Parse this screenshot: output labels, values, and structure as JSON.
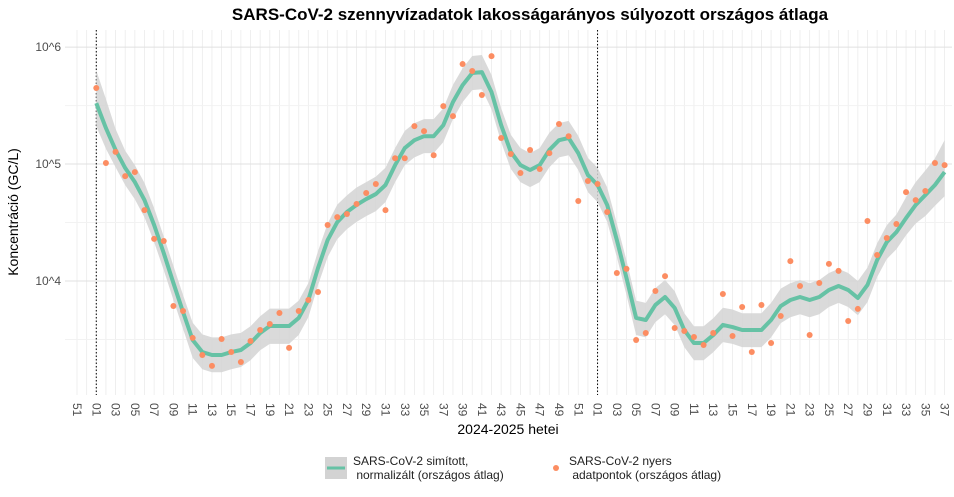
{
  "chart_data": {
    "type": "line",
    "title": "SARS-CoV-2 szennyvízadatok lakosságarányos súlyozott országos átlaga",
    "x_label": "2024-2025 hetei",
    "y_label": "Koncentráció (GC/L)",
    "log_y": true,
    "grid": true,
    "legend_position": "bottom",
    "categories": [
      "51",
      null,
      "01",
      null,
      "03",
      null,
      "05",
      null,
      "07",
      null,
      "09",
      null,
      "11",
      null,
      "13",
      null,
      "15",
      null,
      "17",
      null,
      "19",
      null,
      "21",
      null,
      "23",
      null,
      "25",
      null,
      "27",
      null,
      "29",
      null,
      "31",
      null,
      "33",
      null,
      "35",
      null,
      "37",
      null,
      "39",
      null,
      "41",
      null,
      "43",
      null,
      "45",
      null,
      "47",
      null,
      "49",
      null,
      "51",
      null,
      "01",
      null,
      "03",
      null,
      "05",
      null,
      "07",
      null,
      "09",
      null,
      "11",
      null,
      "13",
      null,
      "15",
      null,
      "17",
      null,
      "19",
      null,
      "21",
      null,
      "23",
      null,
      "25",
      null,
      "27",
      null,
      "29",
      null,
      "31",
      null,
      "33",
      null,
      "35",
      null,
      "37"
    ],
    "ylim": [
      1060,
      1400000
    ],
    "yticks": [
      {
        "value": 10000,
        "label": "10^4"
      },
      {
        "value": 100000,
        "label": "10^5"
      },
      {
        "value": 1000000,
        "label": "10^6"
      }
    ],
    "series": [
      {
        "name": "SARS-CoV-2 simított,\n normalizált (országos átlag)",
        "type": "line",
        "color": "#66c2a5",
        "band_color": "#d3d3d3",
        "values": [
          null,
          null,
          332000,
          203000,
          132000,
          92500,
          70200,
          49200,
          30100,
          17300,
          9620,
          5430,
          3130,
          2470,
          2330,
          2330,
          2470,
          2570,
          2950,
          3590,
          4120,
          4120,
          4120,
          4830,
          6880,
          12900,
          22400,
          31900,
          38900,
          44700,
          50200,
          55400,
          66200,
          98000,
          137000,
          160000,
          173000,
          173000,
          215000,
          339000,
          473000,
          600000,
          611000,
          412000,
          215000,
          127000,
          98000,
          88900,
          98000,
          132000,
          160000,
          167000,
          124000,
          80500,
          66200,
          44700,
          22400,
          10600,
          4830,
          4640,
          6240,
          7300,
          5880,
          3810,
          2950,
          2950,
          3450,
          4210,
          4040,
          3810,
          3810,
          3810,
          4640,
          6110,
          6880,
          7300,
          6880,
          7300,
          8380,
          9060,
          8380,
          7160,
          9250,
          15100,
          21500,
          26200,
          34500,
          44700,
          54300,
          66200,
          85400
        ],
        "upper": [
          null,
          null,
          630000,
          360000,
          200000,
          130000,
          98000,
          69000,
          42000,
          24000,
          13500,
          7600,
          4400,
          3500,
          3300,
          3300,
          3500,
          3600,
          4100,
          5000,
          5800,
          5800,
          5800,
          6800,
          9600,
          18000,
          31000,
          45000,
          54000,
          63000,
          70000,
          78000,
          93000,
          137000,
          192000,
          224000,
          242000,
          242000,
          300000,
          475000,
          660000,
          840000,
          855000,
          577000,
          300000,
          178000,
          137000,
          124000,
          137000,
          185000,
          224000,
          234000,
          174000,
          113000,
          93000,
          63000,
          31000,
          15000,
          6800,
          6500,
          8700,
          10200,
          8200,
          5300,
          4100,
          4100,
          4800,
          5900,
          5700,
          5300,
          5300,
          5300,
          6500,
          8600,
          9600,
          10200,
          9600,
          10200,
          11700,
          12700,
          11700,
          10000,
          13000,
          21000,
          30000,
          37000,
          52000,
          70000,
          88000,
          112000,
          160000
        ],
        "lower": [
          null,
          null,
          210000,
          135000,
          94000,
          66000,
          50000,
          35000,
          21500,
          12400,
          6900,
          3900,
          2200,
          1760,
          1660,
          1660,
          1760,
          1840,
          2100,
          2560,
          2900,
          2900,
          2900,
          3450,
          4900,
          9200,
          16000,
          22800,
          27800,
          32000,
          35900,
          39600,
          47300,
          70000,
          98000,
          114000,
          124000,
          124000,
          154000,
          242000,
          338000,
          429000,
          436000,
          294000,
          154000,
          91000,
          70000,
          63500,
          70000,
          94000,
          114000,
          119000,
          89000,
          57500,
          47300,
          32000,
          16000,
          7600,
          3450,
          3300,
          4450,
          5200,
          4200,
          2720,
          2100,
          2100,
          2460,
          3000,
          2900,
          2720,
          2720,
          2720,
          3300,
          4360,
          4900,
          5200,
          4900,
          5200,
          6000,
          6500,
          6000,
          5100,
          6600,
          10800,
          15400,
          18700,
          24600,
          31000,
          36000,
          44000,
          53000
        ]
      },
      {
        "name": "SARS-CoV-2 nyers\n adatpontok (országos átlag)",
        "type": "scatter",
        "color": "#fc8d62",
        "values": [
          null,
          null,
          447000,
          102000,
          127000,
          78900,
          85400,
          40400,
          22900,
          22000,
          6110,
          5540,
          3260,
          2330,
          1880,
          3190,
          2470,
          2030,
          3070,
          3810,
          4290,
          5330,
          2680,
          5540,
          6880,
          8050,
          30100,
          35200,
          37400,
          45500,
          56500,
          67500,
          40400,
          112000,
          112000,
          211000,
          191000,
          119000,
          313000,
          257000,
          716000,
          624000,
          389000,
          838000,
          167000,
          122000,
          83800,
          132000,
          90600,
          124000,
          220000,
          173000,
          48300,
          71600,
          67500,
          38900,
          11700,
          12700,
          3130,
          3590,
          8220,
          11000,
          3960,
          3740,
          3320,
          2840,
          3590,
          7740,
          3390,
          6000,
          2470,
          6240,
          2950,
          5020,
          14800,
          9060,
          3450,
          9620,
          14000,
          12200,
          4550,
          5770,
          32600,
          16700,
          23300,
          30700,
          57600,
          49200,
          58800,
          102000,
          98000
        ]
      }
    ]
  }
}
